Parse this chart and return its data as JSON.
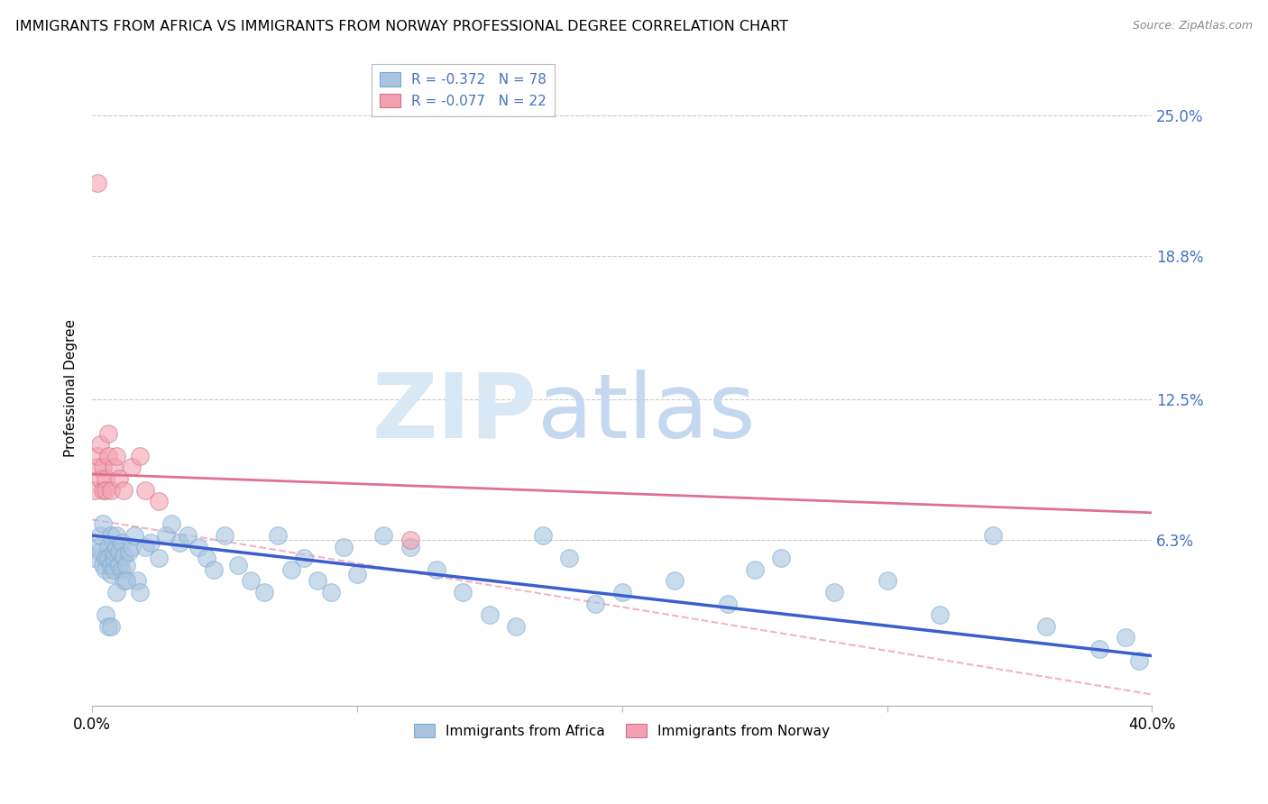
{
  "title": "IMMIGRANTS FROM AFRICA VS IMMIGRANTS FROM NORWAY PROFESSIONAL DEGREE CORRELATION CHART",
  "source": "Source: ZipAtlas.com",
  "ylabel": "Professional Degree",
  "ytick_labels": [
    "25.0%",
    "18.8%",
    "12.5%",
    "6.3%"
  ],
  "ytick_values": [
    0.25,
    0.188,
    0.125,
    0.063
  ],
  "xlim": [
    0.0,
    0.4
  ],
  "ylim": [
    -0.01,
    0.27
  ],
  "africa_R": -0.372,
  "africa_N": 78,
  "norway_R": -0.077,
  "norway_N": 22,
  "africa_color": "#a8c4e0",
  "norway_color": "#f4a0b0",
  "africa_line_color": "#3a5fcd",
  "norway_line_color": "#e07090",
  "dashed_line_color": "#f0a0b0",
  "legend_text_color": "#4472c4",
  "africa_x": [
    0.001,
    0.002,
    0.003,
    0.003,
    0.004,
    0.004,
    0.005,
    0.005,
    0.006,
    0.006,
    0.007,
    0.007,
    0.007,
    0.008,
    0.008,
    0.008,
    0.009,
    0.009,
    0.01,
    0.01,
    0.011,
    0.011,
    0.012,
    0.012,
    0.013,
    0.014,
    0.015,
    0.016,
    0.017,
    0.018,
    0.02,
    0.022,
    0.025,
    0.028,
    0.03,
    0.033,
    0.036,
    0.04,
    0.043,
    0.046,
    0.05,
    0.055,
    0.06,
    0.065,
    0.07,
    0.075,
    0.08,
    0.085,
    0.09,
    0.095,
    0.1,
    0.11,
    0.12,
    0.13,
    0.14,
    0.15,
    0.16,
    0.17,
    0.18,
    0.19,
    0.2,
    0.22,
    0.24,
    0.25,
    0.26,
    0.28,
    0.3,
    0.32,
    0.34,
    0.36,
    0.38,
    0.39,
    0.395,
    0.005,
    0.006,
    0.007,
    0.009,
    0.013
  ],
  "africa_y": [
    0.055,
    0.06,
    0.058,
    0.065,
    0.052,
    0.07,
    0.05,
    0.055,
    0.06,
    0.055,
    0.048,
    0.052,
    0.065,
    0.05,
    0.055,
    0.058,
    0.06,
    0.065,
    0.058,
    0.052,
    0.05,
    0.062,
    0.056,
    0.045,
    0.052,
    0.058,
    0.06,
    0.065,
    0.045,
    0.04,
    0.06,
    0.062,
    0.055,
    0.065,
    0.07,
    0.062,
    0.065,
    0.06,
    0.055,
    0.05,
    0.065,
    0.052,
    0.045,
    0.04,
    0.065,
    0.05,
    0.055,
    0.045,
    0.04,
    0.06,
    0.048,
    0.065,
    0.06,
    0.05,
    0.04,
    0.03,
    0.025,
    0.065,
    0.055,
    0.035,
    0.04,
    0.045,
    0.035,
    0.05,
    0.055,
    0.04,
    0.045,
    0.03,
    0.065,
    0.025,
    0.015,
    0.02,
    0.01,
    0.03,
    0.025,
    0.025,
    0.04,
    0.045
  ],
  "norway_x": [
    0.001,
    0.002,
    0.002,
    0.003,
    0.003,
    0.004,
    0.004,
    0.005,
    0.005,
    0.006,
    0.006,
    0.007,
    0.008,
    0.009,
    0.01,
    0.012,
    0.015,
    0.018,
    0.02,
    0.025,
    0.12,
    0.002
  ],
  "norway_y": [
    0.085,
    0.095,
    0.1,
    0.105,
    0.09,
    0.095,
    0.085,
    0.09,
    0.085,
    0.1,
    0.11,
    0.085,
    0.095,
    0.1,
    0.09,
    0.085,
    0.095,
    0.1,
    0.085,
    0.08,
    0.063,
    0.22
  ],
  "norway_line_x0": 0.0,
  "norway_line_y0": 0.092,
  "norway_line_x1": 0.4,
  "norway_line_y1": 0.075,
  "africa_line_x0": 0.0,
  "africa_line_y0": 0.065,
  "africa_line_x1": 0.4,
  "africa_line_y1": 0.012,
  "dashed_line_x0": 0.0,
  "dashed_line_y0": 0.072,
  "dashed_line_x1": 0.4,
  "dashed_line_y1": -0.005
}
